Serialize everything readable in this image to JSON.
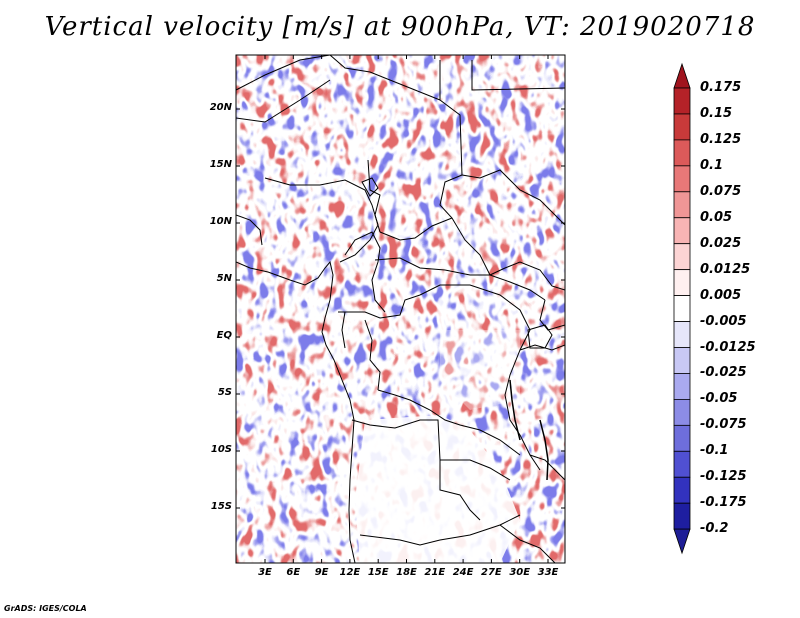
{
  "title": "Vertical velocity [m/s] at 900hPa, VT: 2019020718",
  "credit": "GrADS: IGES/COLA",
  "lat_ticks": [
    "20N",
    "15N",
    "10N",
    "5N",
    "EQ",
    "5S",
    "10S",
    "15S"
  ],
  "lon_ticks": [
    "3E",
    "6E",
    "9E",
    "12E",
    "15E",
    "18E",
    "21E",
    "24E",
    "27E",
    "30E",
    "33E"
  ],
  "colorbar": {
    "labels": [
      "0.175",
      "0.15",
      "0.125",
      "0.1",
      "0.075",
      "0.05",
      "0.025",
      "0.0125",
      "0.005",
      "-0.005",
      "-0.0125",
      "-0.025",
      "-0.05",
      "-0.075",
      "-0.1",
      "-0.125",
      "-0.175",
      "-0.2"
    ],
    "colors": [
      "#a0141e",
      "#b42228",
      "#c83a3a",
      "#dc5a5a",
      "#e87878",
      "#f09696",
      "#f8b4b4",
      "#fcd4d4",
      "#fff0f0",
      "#ffffff",
      "#e6e6fa",
      "#c8c8f5",
      "#aaaaf0",
      "#8c8ce6",
      "#6e6edc",
      "#5050d2",
      "#3232be",
      "#1e1ea0",
      "#1414b4"
    ],
    "over_color": "#a0141e",
    "under_color": "#1e1e96"
  },
  "map_colors": {
    "blue": "#6464e6",
    "red": "#dc5050",
    "border": "#000000"
  }
}
